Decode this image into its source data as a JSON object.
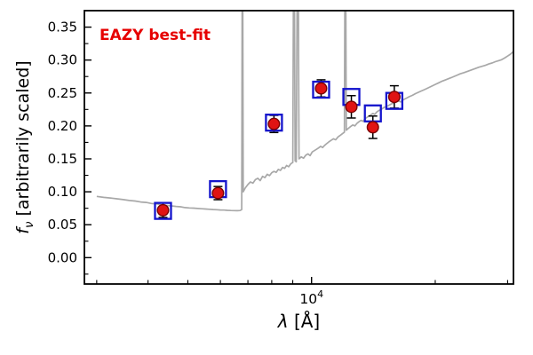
{
  "chart_data": {
    "type": "line",
    "annotation": "EAZY best-fit",
    "xlabel": "λ [Å]",
    "ylabel": "fν [arbitrarily scaled]",
    "xlabel_parts": {
      "symbol": "λ",
      "rest": " [Å]"
    },
    "ylabel_parts": {
      "symbol": "f",
      "sub": "ν",
      "rest": " [arbitrarily scaled]"
    },
    "x_scale": "log",
    "xlim": [
      2800,
      31000
    ],
    "ylim": [
      -0.04,
      0.375
    ],
    "grid": false,
    "legend": "none",
    "colors": {
      "spectrum": "#a8a8a8",
      "model_marker": "#1414cc",
      "observed_marker": "#e01313",
      "observed_edge": "#7a0000",
      "errorbar": "#000000",
      "annotation": "#e60000",
      "axes": "#000000"
    },
    "y_ticks": [
      {
        "value": 0.0,
        "label": "0.00"
      },
      {
        "value": 0.05,
        "label": "0.05"
      },
      {
        "value": 0.1,
        "label": "0.10"
      },
      {
        "value": 0.15,
        "label": "0.15"
      },
      {
        "value": 0.2,
        "label": "0.20"
      },
      {
        "value": 0.25,
        "label": "0.25"
      },
      {
        "value": 0.3,
        "label": "0.30"
      },
      {
        "value": 0.35,
        "label": "0.35"
      }
    ],
    "y_minor_step": 0.025,
    "x_major_ticks": [
      {
        "value": 10000,
        "label_base": "10",
        "label_exp": "4"
      }
    ],
    "x_minor_ticks": [
      3000,
      4000,
      5000,
      6000,
      7000,
      8000,
      9000,
      20000,
      30000
    ],
    "series": [
      {
        "name": "model-spectrum",
        "kind": "line",
        "points": [
          [
            3000,
            0.093
          ],
          [
            3120,
            0.0915
          ],
          [
            3240,
            0.0905
          ],
          [
            3360,
            0.0893
          ],
          [
            3480,
            0.0882
          ],
          [
            3600,
            0.0868
          ],
          [
            3720,
            0.086
          ],
          [
            3840,
            0.0845
          ],
          [
            3960,
            0.0838
          ],
          [
            4080,
            0.0822
          ],
          [
            4200,
            0.0815
          ],
          [
            4320,
            0.08
          ],
          [
            4440,
            0.0792
          ],
          [
            4560,
            0.0786
          ],
          [
            4680,
            0.0778
          ],
          [
            4800,
            0.0772
          ],
          [
            4920,
            0.076
          ],
          [
            5040,
            0.0755
          ],
          [
            5160,
            0.0752
          ],
          [
            5280,
            0.0746
          ],
          [
            5400,
            0.0742
          ],
          [
            5520,
            0.0738
          ],
          [
            5640,
            0.0734
          ],
          [
            5760,
            0.0731
          ],
          [
            5880,
            0.0728
          ],
          [
            6000,
            0.0724
          ],
          [
            6120,
            0.0722
          ],
          [
            6240,
            0.0718
          ],
          [
            6360,
            0.0716
          ],
          [
            6480,
            0.0714
          ],
          [
            6600,
            0.0713
          ],
          [
            6700,
            0.0715
          ],
          [
            6760,
            0.073
          ],
          [
            6790,
            0.6
          ],
          [
            6820,
            0.1
          ],
          [
            6900,
            0.106
          ],
          [
            7000,
            0.111
          ],
          [
            7100,
            0.115
          ],
          [
            7200,
            0.113
          ],
          [
            7300,
            0.1185
          ],
          [
            7400,
            0.1205
          ],
          [
            7500,
            0.117
          ],
          [
            7600,
            0.1235
          ],
          [
            7700,
            0.1215
          ],
          [
            7800,
            0.1265
          ],
          [
            7900,
            0.1245
          ],
          [
            8000,
            0.129
          ],
          [
            8100,
            0.131
          ],
          [
            8200,
            0.1295
          ],
          [
            8300,
            0.134
          ],
          [
            8400,
            0.1325
          ],
          [
            8500,
            0.137
          ],
          [
            8600,
            0.1355
          ],
          [
            8700,
            0.14
          ],
          [
            8800,
            0.138
          ],
          [
            8900,
            0.1425
          ],
          [
            9000,
            0.1445
          ],
          [
            9060,
            0.6
          ],
          [
            9120,
            0.147
          ],
          [
            9180,
            0.1455
          ],
          [
            9260,
            0.6
          ],
          [
            9320,
            0.15
          ],
          [
            9440,
            0.153
          ],
          [
            9560,
            0.151
          ],
          [
            9680,
            0.1555
          ],
          [
            9800,
            0.1575
          ],
          [
            9920,
            0.155
          ],
          [
            10040,
            0.1605
          ],
          [
            10160,
            0.1625
          ],
          [
            10280,
            0.1645
          ],
          [
            10400,
            0.1665
          ],
          [
            10520,
            0.169
          ],
          [
            10640,
            0.1672
          ],
          [
            10760,
            0.1705
          ],
          [
            10880,
            0.173
          ],
          [
            11000,
            0.1755
          ],
          [
            11150,
            0.178
          ],
          [
            11300,
            0.1805
          ],
          [
            11450,
            0.179
          ],
          [
            11600,
            0.1832
          ],
          [
            11750,
            0.1858
          ],
          [
            11900,
            0.1885
          ],
          [
            12020,
            0.1905
          ],
          [
            12080,
            0.6
          ],
          [
            12150,
            0.1935
          ],
          [
            12300,
            0.1965
          ],
          [
            12450,
            0.199
          ],
          [
            12600,
            0.2015
          ],
          [
            12750,
            0.2
          ],
          [
            12900,
            0.204
          ],
          [
            13050,
            0.2065
          ],
          [
            13200,
            0.2085
          ],
          [
            13350,
            0.207
          ],
          [
            13500,
            0.211
          ],
          [
            13650,
            0.213
          ],
          [
            13800,
            0.215
          ],
          [
            13950,
            0.217
          ],
          [
            14100,
            0.219
          ],
          [
            14250,
            0.2175
          ],
          [
            14400,
            0.221
          ],
          [
            14550,
            0.223
          ],
          [
            14700,
            0.2245
          ],
          [
            14850,
            0.226
          ],
          [
            15000,
            0.228
          ],
          [
            15200,
            0.2295
          ],
          [
            15400,
            0.231
          ],
          [
            15600,
            0.233
          ],
          [
            15800,
            0.2345
          ],
          [
            16000,
            0.236
          ],
          [
            16250,
            0.238
          ],
          [
            16500,
            0.2365
          ],
          [
            16750,
            0.24
          ],
          [
            17000,
            0.242
          ],
          [
            17300,
            0.2445
          ],
          [
            17600,
            0.2465
          ],
          [
            17900,
            0.249
          ],
          [
            18200,
            0.251
          ],
          [
            18500,
            0.253
          ],
          [
            18800,
            0.255
          ],
          [
            19100,
            0.257
          ],
          [
            19400,
            0.259
          ],
          [
            19700,
            0.261
          ],
          [
            20000,
            0.263
          ],
          [
            20400,
            0.2655
          ],
          [
            20800,
            0.268
          ],
          [
            21200,
            0.27
          ],
          [
            21600,
            0.272
          ],
          [
            22000,
            0.274
          ],
          [
            22500,
            0.2765
          ],
          [
            23000,
            0.279
          ],
          [
            23500,
            0.281
          ],
          [
            24000,
            0.283
          ],
          [
            24500,
            0.285
          ],
          [
            25000,
            0.287
          ],
          [
            25500,
            0.289
          ],
          [
            26000,
            0.2905
          ],
          [
            26500,
            0.292
          ],
          [
            27000,
            0.294
          ],
          [
            27500,
            0.2955
          ],
          [
            28000,
            0.2975
          ],
          [
            28500,
            0.299
          ],
          [
            29000,
            0.3005
          ],
          [
            29500,
            0.303
          ],
          [
            30000,
            0.306
          ],
          [
            30500,
            0.309
          ],
          [
            31000,
            0.313
          ]
        ]
      },
      {
        "name": "model-photometry",
        "kind": "scatter",
        "marker": "open-square",
        "x": [
          4350,
          5920,
          8100,
          10550,
          12500,
          14100,
          15900
        ],
        "y": [
          0.071,
          0.104,
          0.205,
          0.255,
          0.244,
          0.219,
          0.238
        ]
      },
      {
        "name": "observed-photometry",
        "kind": "scatter",
        "marker": "filled-circle",
        "x": [
          4350,
          5920,
          8100,
          10550,
          12500,
          14100,
          15900
        ],
        "y": [
          0.072,
          0.098,
          0.203,
          0.257,
          0.229,
          0.198,
          0.244
        ],
        "yerr": [
          0.011,
          0.01,
          0.013,
          0.013,
          0.017,
          0.017,
          0.017
        ]
      }
    ]
  }
}
